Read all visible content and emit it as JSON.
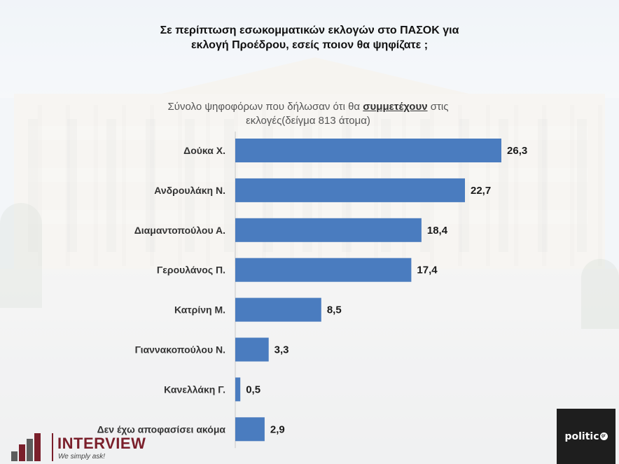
{
  "title": {
    "line1": "Σε περίπτωση εσωκομματικών εκλογών στο ΠΑΣΟΚ για",
    "line2": "εκλογή Προέδρου, εσείς ποιον θα ψηφίζατε ;"
  },
  "subtitle": {
    "before": "Σύνολο ψηφοφόρων που δήλωσαν ότι θα ",
    "emphasis": "συμμετέχουν",
    "after": " στις",
    "line2": "εκλογές(δείγμα 813 άτομα)"
  },
  "colors": {
    "bar": "#4a7cbf",
    "brand_interview": "#7a1f2b",
    "brand_politic_bg": "#1e1e1e"
  },
  "chart_data": {
    "type": "bar",
    "orientation": "horizontal",
    "categories": [
      "Δούκα Χ.",
      "Ανδρουλάκη Ν.",
      "Διαμαντοπούλου Α.",
      "Γερουλάνος Π.",
      "Κατρίνη Μ.",
      "Γιαννακοπούλου Ν.",
      "Κανελλάκη Γ.",
      "Δεν έχω αποφασίσει ακόμα"
    ],
    "values": [
      26.3,
      22.7,
      18.4,
      17.4,
      8.5,
      3.3,
      0.5,
      2.9
    ],
    "value_labels": [
      "26,3",
      "22,7",
      "18,4",
      "17,4",
      "8,5",
      "3,3",
      "0,5",
      "2,9"
    ],
    "xlim": [
      0,
      30
    ],
    "grid": false,
    "legend": "none"
  },
  "footer": {
    "interview_name": "INTERVIEW",
    "interview_tagline": "We simply ask!",
    "politic_name": "politic",
    "politic_suffix": "gr"
  }
}
